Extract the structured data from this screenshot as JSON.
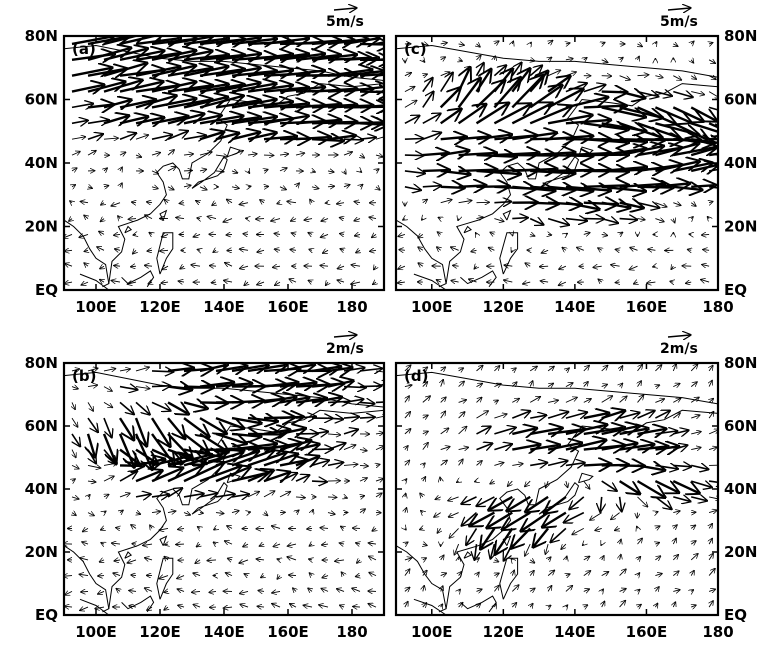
{
  "chart_data": [
    {
      "type": "vector",
      "panel_label": "(a)",
      "reference_vector_label": "5m/s",
      "reference_vector": 5,
      "x_ticks": [
        "100E",
        "120E",
        "140E",
        "160E",
        "180"
      ],
      "y_ticks": [
        "80N",
        "60N",
        "40N",
        "20N",
        "EQ"
      ],
      "x_range": [
        90,
        190
      ],
      "y_range": [
        0,
        80
      ],
      "y_axis_side": "left",
      "jets": [
        {
          "lon": 118,
          "lat": 74,
          "u": 11,
          "v": 3,
          "width": 60,
          "amp": 1.3
        },
        {
          "lon": 150,
          "lat": 73,
          "u": 10,
          "v": -1,
          "width": 40,
          "amp": 1.0
        },
        {
          "lon": 160,
          "lat": 60,
          "u": 12,
          "v": 0,
          "width": 20,
          "amp": 1.3
        },
        {
          "lon": 165,
          "lat": 52,
          "u": 12,
          "v": 0,
          "width": 18,
          "amp": 1.0
        },
        {
          "lon": 135,
          "lat": 56,
          "u": 9,
          "v": 3,
          "width": 25,
          "amp": 1.0
        }
      ],
      "background": "easterly",
      "seed": 11
    },
    {
      "type": "vector",
      "panel_label": "(c)",
      "reference_vector_label": "5m/s",
      "reference_vector": 5,
      "x_ticks": [
        "100E",
        "120E",
        "140E",
        "160E",
        "180"
      ],
      "y_ticks": [
        "80N",
        "60N",
        "40N",
        "20N",
        "EQ"
      ],
      "x_range": [
        90,
        180
      ],
      "y_range": [
        0,
        80
      ],
      "y_axis_side": "right",
      "jets": [
        {
          "lon": 135,
          "lat": 40,
          "u": 13,
          "v": 0,
          "width": 40,
          "amp": 1.5
        },
        {
          "lon": 120,
          "lat": 58,
          "u": 4,
          "v": 10,
          "width": 25,
          "amp": 1.2
        },
        {
          "lon": 155,
          "lat": 55,
          "u": 9,
          "v": -6,
          "width": 25,
          "amp": 1.2
        },
        {
          "lon": 160,
          "lat": 42,
          "u": 6,
          "v": 6,
          "width": 15,
          "amp": 1.0
        },
        {
          "lon": 140,
          "lat": 25,
          "u": 8,
          "v": -2,
          "width": 20,
          "amp": 0.8
        }
      ],
      "background": "easterly",
      "seed": 23
    },
    {
      "type": "vector",
      "panel_label": "(b)",
      "reference_vector_label": "2m/s",
      "reference_vector": 2,
      "x_ticks": [
        "100E",
        "120E",
        "140E",
        "160E",
        "180"
      ],
      "y_ticks": [
        "80N",
        "60N",
        "40N",
        "20N",
        "EQ"
      ],
      "x_range": [
        90,
        190
      ],
      "y_range": [
        0,
        80
      ],
      "y_axis_side": "left",
      "jets": [
        {
          "lon": 150,
          "lat": 74,
          "u": 10,
          "v": 1,
          "width": 40,
          "amp": 1.2
        },
        {
          "lon": 115,
          "lat": 58,
          "u": 0,
          "v": -9,
          "width": 25,
          "amp": 1.4
        },
        {
          "lon": 140,
          "lat": 50,
          "u": 10,
          "v": 3,
          "width": 30,
          "amp": 1.2
        },
        {
          "lon": 125,
          "lat": 45,
          "u": 8,
          "v": 5,
          "width": 20,
          "amp": 1.0
        }
      ],
      "background": "easterly",
      "seed": 37
    },
    {
      "type": "vector",
      "panel_label": "(d)",
      "reference_vector_label": "2m/s",
      "reference_vector": 2,
      "x_ticks": [
        "100E",
        "120E",
        "140E",
        "160E",
        "180"
      ],
      "y_ticks": [
        "80N",
        "60N",
        "40N",
        "20N",
        "EQ"
      ],
      "x_range": [
        90,
        180
      ],
      "y_range": [
        0,
        80
      ],
      "y_axis_side": "right",
      "jets": [
        {
          "lon": 140,
          "lat": 55,
          "u": 10,
          "v": 1,
          "width": 25,
          "amp": 1.3
        },
        {
          "lon": 130,
          "lat": 35,
          "u": -9,
          "v": -5,
          "width": 25,
          "amp": 1.3
        },
        {
          "lon": 160,
          "lat": 42,
          "u": 8,
          "v": -6,
          "width": 20,
          "amp": 1.0
        },
        {
          "lon": 120,
          "lat": 25,
          "u": -3,
          "v": -8,
          "width": 18,
          "amp": 1.0
        }
      ],
      "background": "southwesterly",
      "seed": 49
    }
  ]
}
